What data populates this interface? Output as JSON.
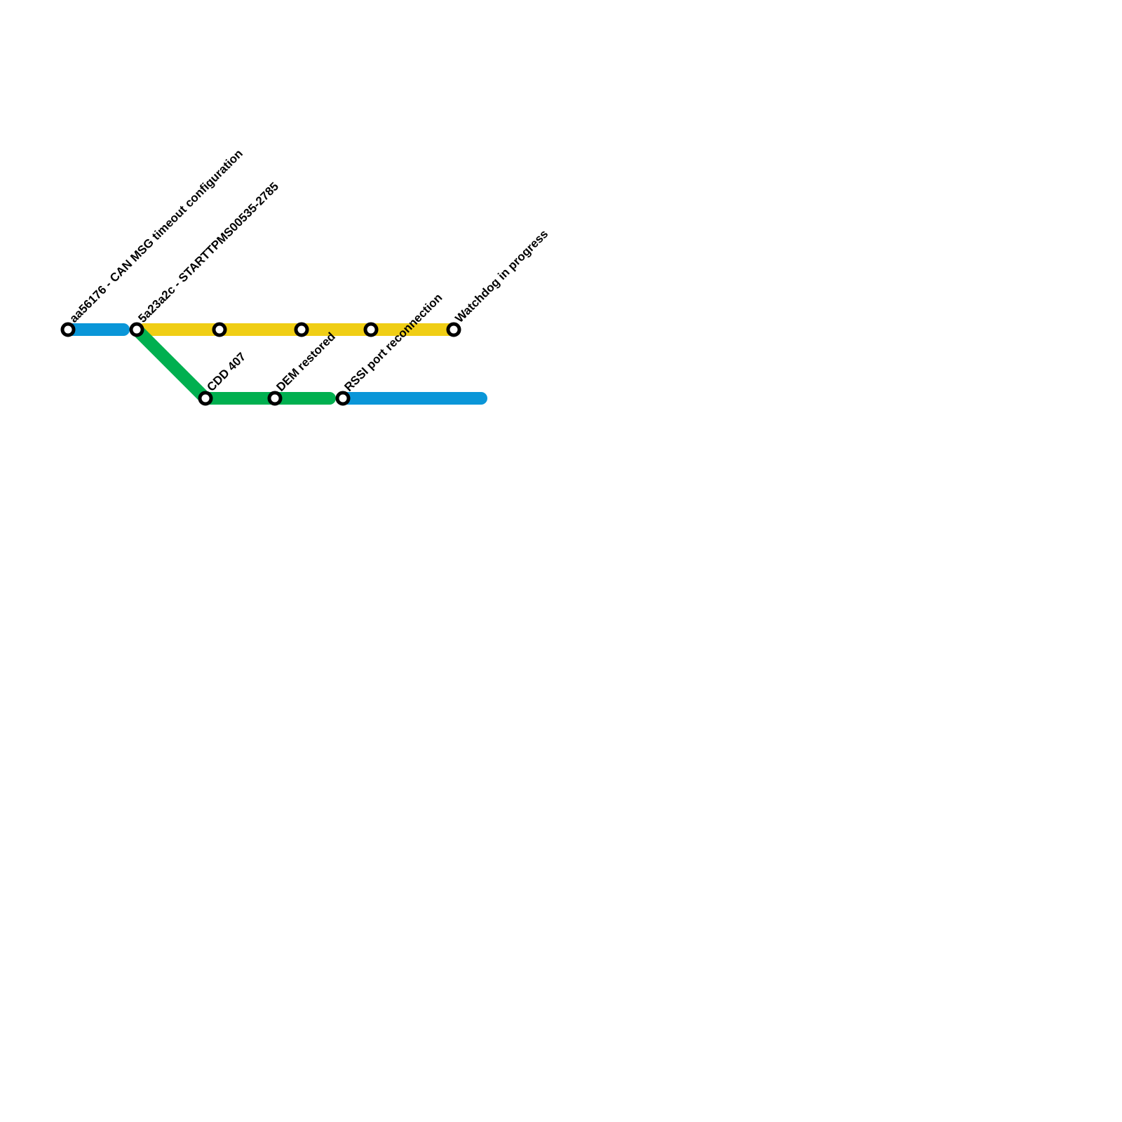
{
  "colors": {
    "blue": "#0a96d8",
    "yellow": "#f0ce15",
    "green": "#00b050",
    "station_stroke": "#000000",
    "station_fill": "#ffffff"
  },
  "lines": [
    {
      "id": "blue-start",
      "color": "blue"
    },
    {
      "id": "yellow",
      "color": "yellow"
    },
    {
      "id": "green",
      "color": "green"
    },
    {
      "id": "blue-end",
      "color": "blue"
    }
  ],
  "stations": [
    {
      "label": "aa56176 - CAN MSG timeout configuration"
    },
    {
      "label": "5a23a2c - STARTTPMS00535-2785"
    },
    {
      "label": ""
    },
    {
      "label": ""
    },
    {
      "label": ""
    },
    {
      "label": "Watchdog in progress"
    },
    {
      "label": "CDD 407"
    },
    {
      "label": "DEM restored"
    },
    {
      "label": "RSSI port reconnection"
    }
  ]
}
